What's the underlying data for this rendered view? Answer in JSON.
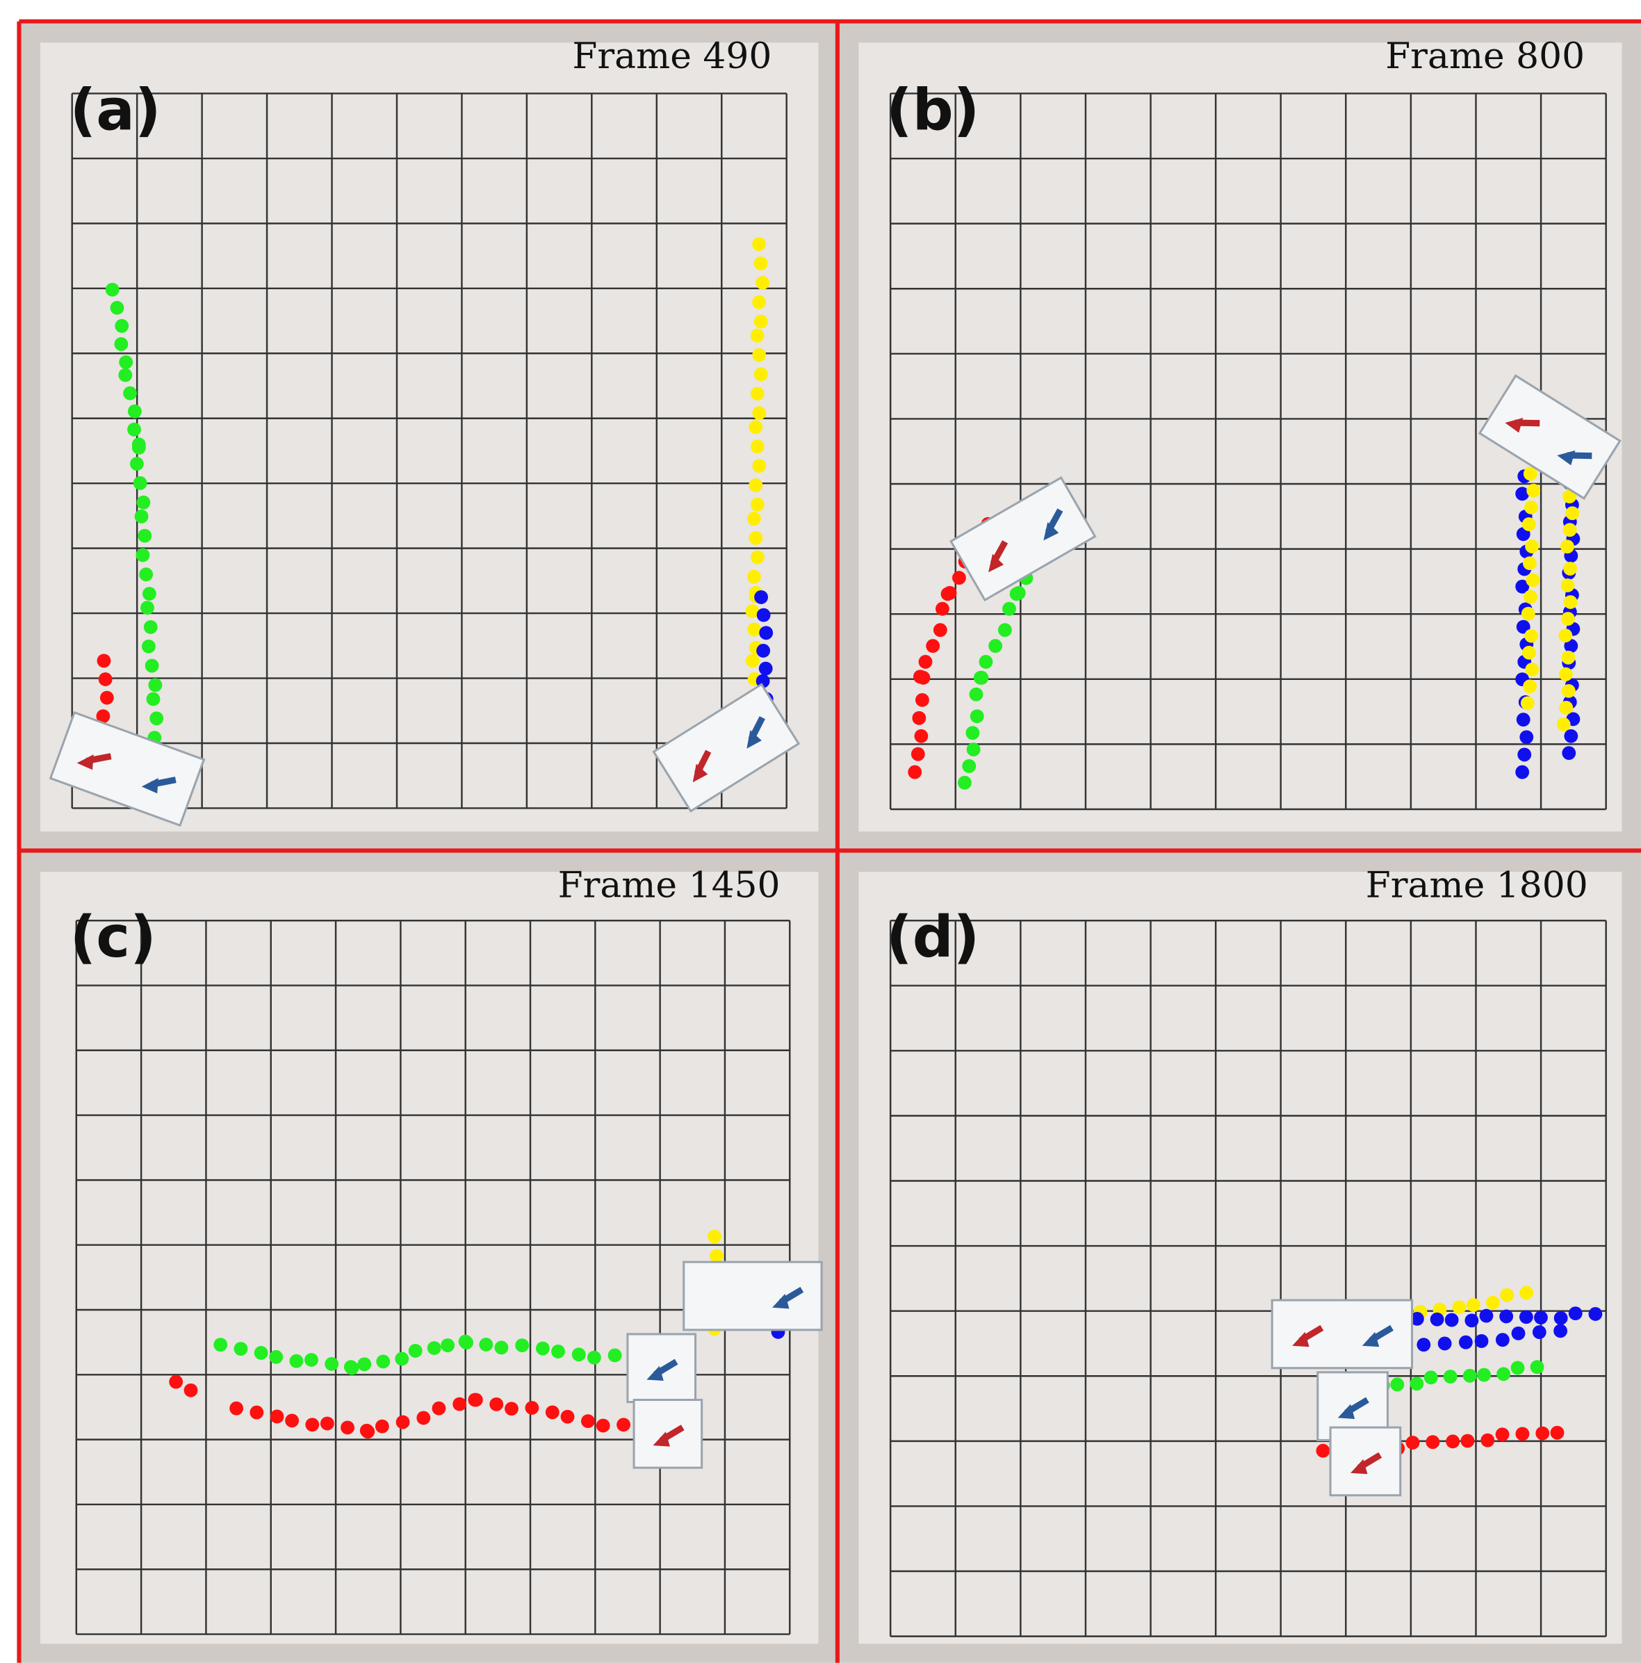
{
  "panels": [
    {
      "label": "(a)",
      "frame": "Frame 490"
    },
    {
      "label": "(b)",
      "frame": "Frame 800"
    },
    {
      "label": "(c)",
      "frame": "Frame 1450"
    },
    {
      "label": "(d)",
      "frame": "Frame 1800"
    }
  ]
}
